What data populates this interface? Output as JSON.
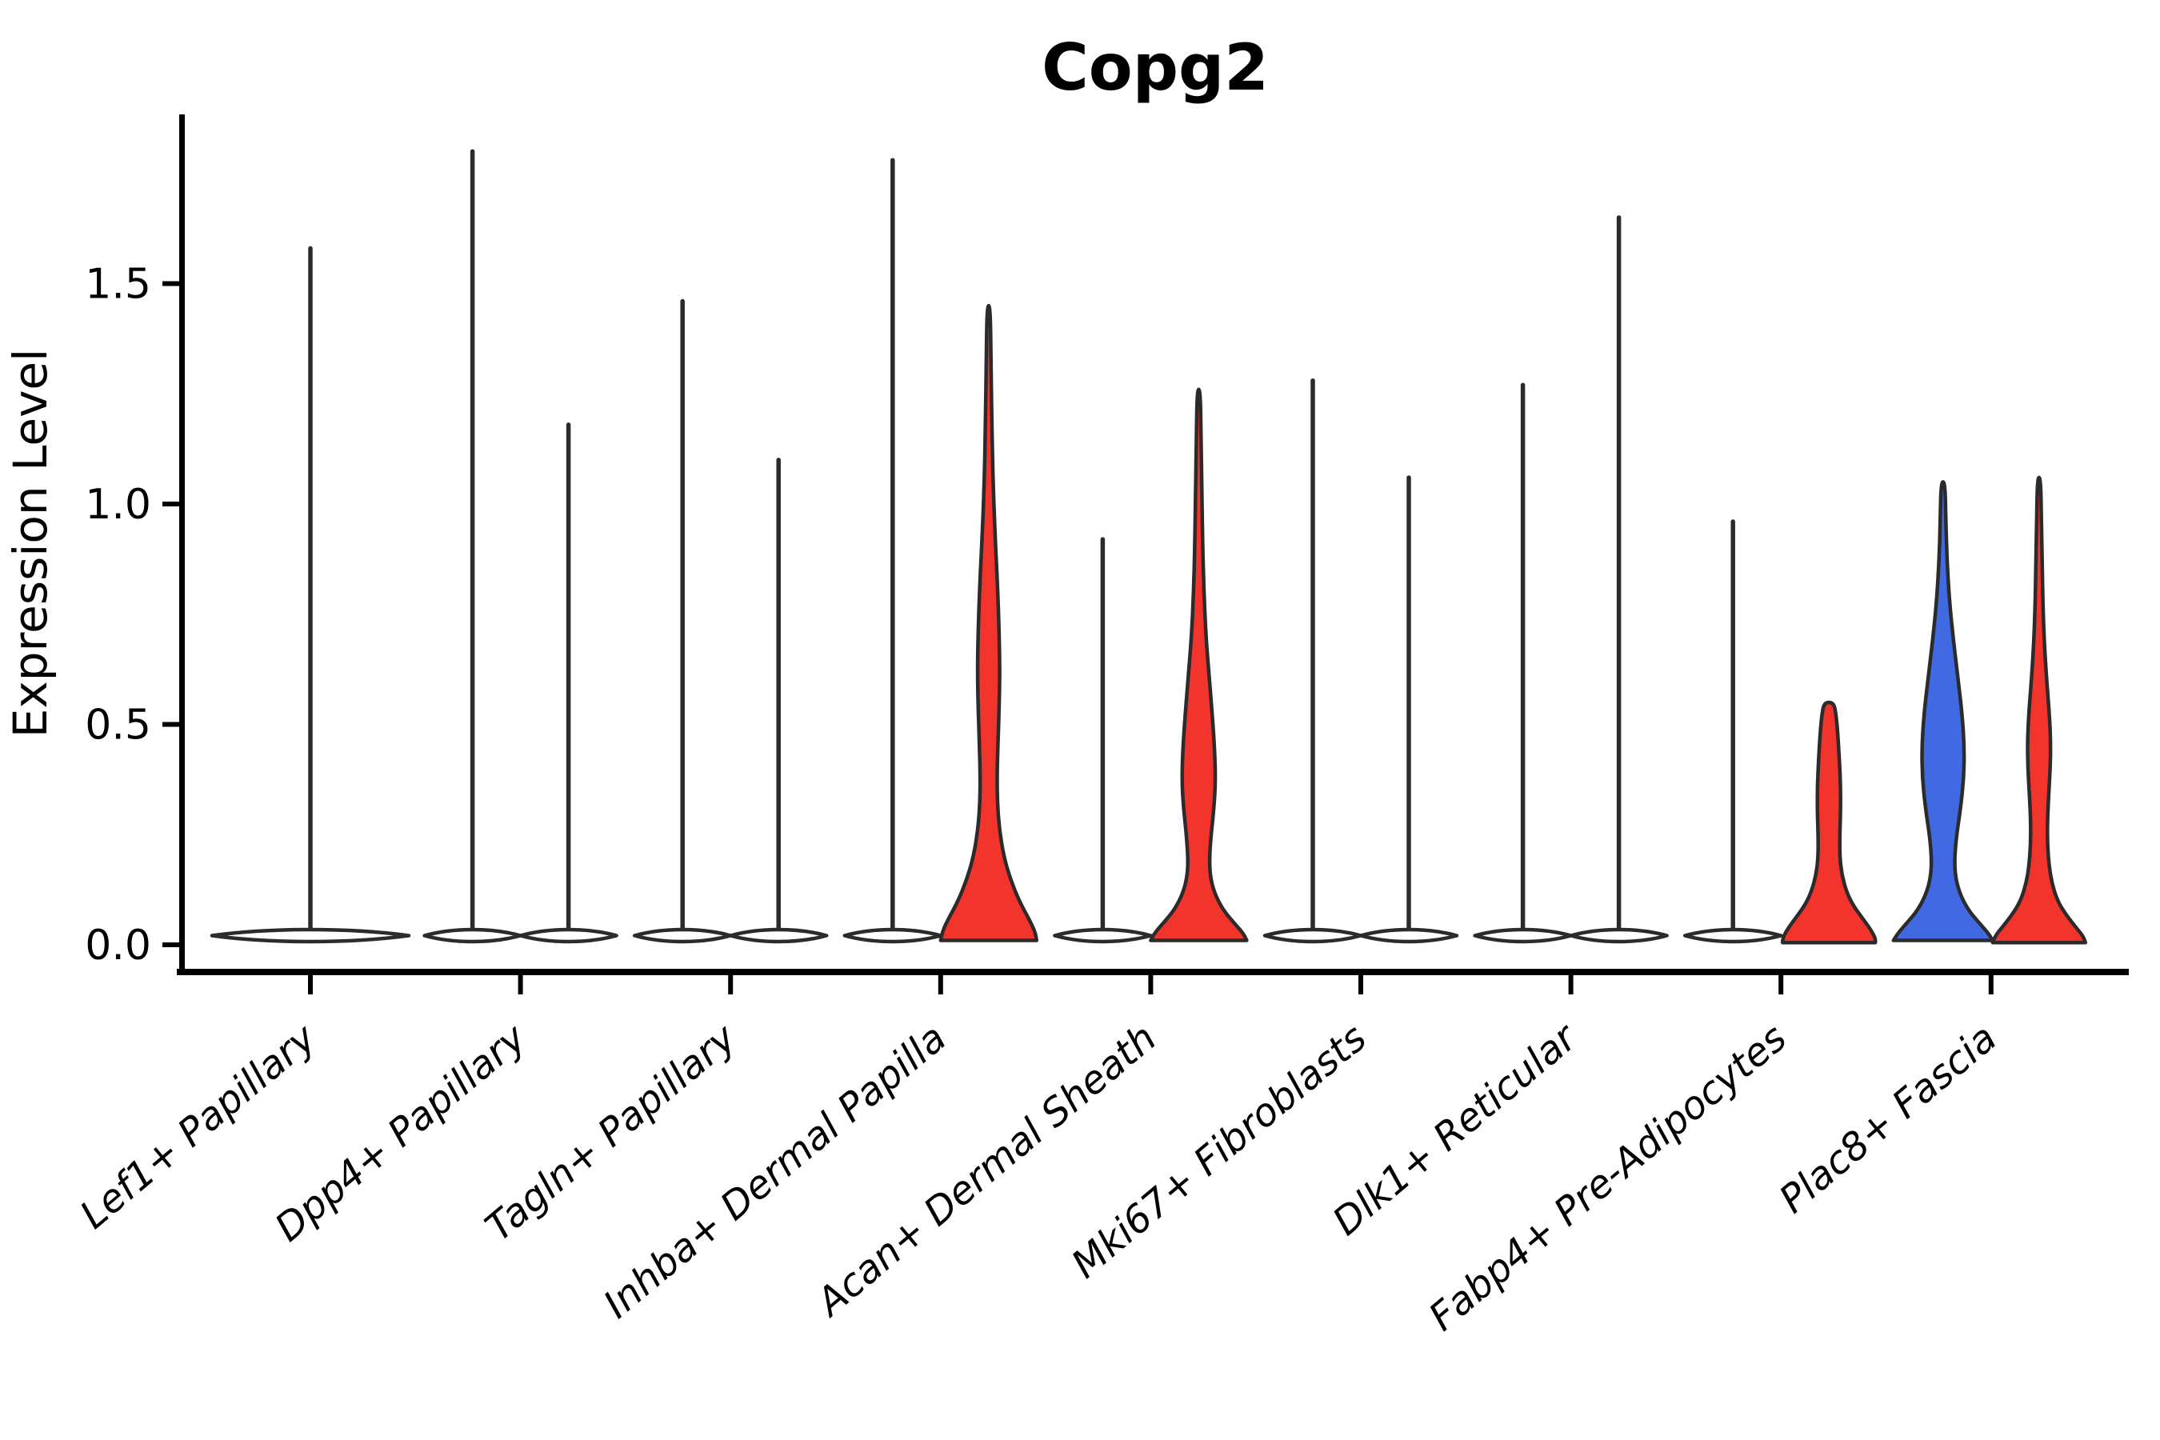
{
  "chart_data": {
    "type": "violin",
    "title": "Copg2",
    "ylabel": "Expression Level",
    "categories": [
      "Lef1+ Papillary",
      "Dpp4+ Papillary",
      "Tagln+ Papillary",
      "Inhba+ Dermal Papilla",
      "Acan+ Dermal Sheath",
      "Mki67+ Fibroblasts",
      "Dlk1+ Reticular",
      "Fabp4+ Pre-Adipocytes",
      "Plac8+ Fascia"
    ],
    "yticks": [
      {
        "value": 0.0,
        "label": "0.0"
      },
      {
        "value": 0.5,
        "label": "0.5"
      },
      {
        "value": 1.0,
        "label": "1.0"
      },
      {
        "value": 1.5,
        "label": "1.5"
      }
    ],
    "ylim": [
      -0.06,
      1.88
    ],
    "grid": false,
    "legend": "none",
    "colors": {
      "red": "#F3342C",
      "blue": "#4169E1",
      "white": "#FFFFFF",
      "edge": "#2B2B2B",
      "axis": "#000000"
    },
    "violins": [
      {
        "category_index": 0,
        "side": "center",
        "style": "line",
        "color": "white",
        "max": 1.58,
        "base_halfwidth": 123
      },
      {
        "category_index": 1,
        "side": "left",
        "style": "line",
        "color": "white",
        "max": 1.8,
        "base_halfwidth": 60
      },
      {
        "category_index": 1,
        "side": "right",
        "style": "line",
        "color": "white",
        "max": 1.18,
        "base_halfwidth": 60
      },
      {
        "category_index": 2,
        "side": "left",
        "style": "line",
        "color": "white",
        "max": 1.46,
        "base_halfwidth": 60
      },
      {
        "category_index": 2,
        "side": "right",
        "style": "line",
        "color": "white",
        "max": 1.1,
        "base_halfwidth": 60
      },
      {
        "category_index": 3,
        "side": "left",
        "style": "line",
        "color": "white",
        "max": 1.78,
        "base_halfwidth": 60
      },
      {
        "category_index": 3,
        "side": "right",
        "style": "filled",
        "color": "red",
        "max": 1.45,
        "profile": [
          [
            1.45,
            2
          ],
          [
            1.32,
            3
          ],
          [
            1.18,
            4
          ],
          [
            1.05,
            5.5
          ],
          [
            0.93,
            8
          ],
          [
            0.82,
            11
          ],
          [
            0.72,
            13
          ],
          [
            0.62,
            14
          ],
          [
            0.53,
            13
          ],
          [
            0.45,
            11.5
          ],
          [
            0.38,
            10.5
          ],
          [
            0.32,
            11
          ],
          [
            0.26,
            13.5
          ],
          [
            0.2,
            19
          ],
          [
            0.15,
            27
          ],
          [
            0.1,
            38
          ],
          [
            0.06,
            50
          ],
          [
            0.03,
            58
          ],
          [
            0.01,
            60
          ]
        ]
      },
      {
        "category_index": 4,
        "side": "left",
        "style": "line",
        "color": "white",
        "max": 0.92,
        "base_halfwidth": 60
      },
      {
        "category_index": 4,
        "side": "right",
        "style": "filled",
        "color": "red",
        "max": 1.26,
        "profile": [
          [
            1.26,
            2
          ],
          [
            1.14,
            3
          ],
          [
            1.02,
            4
          ],
          [
            0.9,
            5
          ],
          [
            0.8,
            6.5
          ],
          [
            0.7,
            9
          ],
          [
            0.61,
            13
          ],
          [
            0.52,
            17
          ],
          [
            0.44,
            20
          ],
          [
            0.37,
            21
          ],
          [
            0.31,
            19
          ],
          [
            0.25,
            15.5
          ],
          [
            0.2,
            13.5
          ],
          [
            0.16,
            14
          ],
          [
            0.12,
            19
          ],
          [
            0.08,
            30
          ],
          [
            0.05,
            44
          ],
          [
            0.025,
            56
          ],
          [
            0.01,
            60
          ]
        ]
      },
      {
        "category_index": 5,
        "side": "left",
        "style": "line",
        "color": "white",
        "max": 1.28,
        "base_halfwidth": 60
      },
      {
        "category_index": 5,
        "side": "right",
        "style": "line",
        "color": "white",
        "max": 1.06,
        "base_halfwidth": 60
      },
      {
        "category_index": 6,
        "side": "left",
        "style": "line",
        "color": "white",
        "max": 1.27,
        "base_halfwidth": 60
      },
      {
        "category_index": 6,
        "side": "right",
        "style": "line",
        "color": "white",
        "max": 1.65,
        "base_halfwidth": 60
      },
      {
        "category_index": 7,
        "side": "left",
        "style": "line",
        "color": "white",
        "max": 0.96,
        "base_halfwidth": 60
      },
      {
        "category_index": 7,
        "side": "right",
        "style": "filled",
        "color": "red",
        "max": 0.55,
        "profile": [
          [
            0.55,
            6
          ],
          [
            0.52,
            9
          ],
          [
            0.48,
            11
          ],
          [
            0.42,
            13
          ],
          [
            0.36,
            14.5
          ],
          [
            0.3,
            14.5
          ],
          [
            0.25,
            13.5
          ],
          [
            0.2,
            13.5
          ],
          [
            0.16,
            16
          ],
          [
            0.12,
            22
          ],
          [
            0.09,
            30
          ],
          [
            0.06,
            42
          ],
          [
            0.035,
            52
          ],
          [
            0.015,
            58
          ],
          [
            0.005,
            58
          ]
        ]
      },
      {
        "category_index": 8,
        "side": "left",
        "style": "filled",
        "color": "blue",
        "max": 1.05,
        "profile": [
          [
            1.05,
            2.5
          ],
          [
            0.96,
            3.5
          ],
          [
            0.87,
            5
          ],
          [
            0.78,
            8
          ],
          [
            0.69,
            13
          ],
          [
            0.6,
            19
          ],
          [
            0.52,
            24
          ],
          [
            0.45,
            26.5
          ],
          [
            0.38,
            26
          ],
          [
            0.31,
            22
          ],
          [
            0.25,
            17
          ],
          [
            0.2,
            14.5
          ],
          [
            0.16,
            15
          ],
          [
            0.12,
            20
          ],
          [
            0.08,
            31
          ],
          [
            0.05,
            45
          ],
          [
            0.025,
            57
          ],
          [
            0.01,
            62
          ]
        ]
      },
      {
        "category_index": 8,
        "side": "right",
        "style": "filled",
        "color": "red",
        "max": 1.06,
        "profile": [
          [
            1.06,
            2
          ],
          [
            0.96,
            3
          ],
          [
            0.86,
            4
          ],
          [
            0.76,
            5
          ],
          [
            0.67,
            7
          ],
          [
            0.59,
            10
          ],
          [
            0.52,
            13
          ],
          [
            0.46,
            14.5
          ],
          [
            0.4,
            14
          ],
          [
            0.34,
            12
          ],
          [
            0.28,
            10.5
          ],
          [
            0.23,
            10.5
          ],
          [
            0.18,
            12.5
          ],
          [
            0.14,
            16
          ],
          [
            0.1,
            23
          ],
          [
            0.07,
            33
          ],
          [
            0.04,
            46
          ],
          [
            0.02,
            55
          ],
          [
            0.005,
            58
          ]
        ]
      }
    ]
  }
}
